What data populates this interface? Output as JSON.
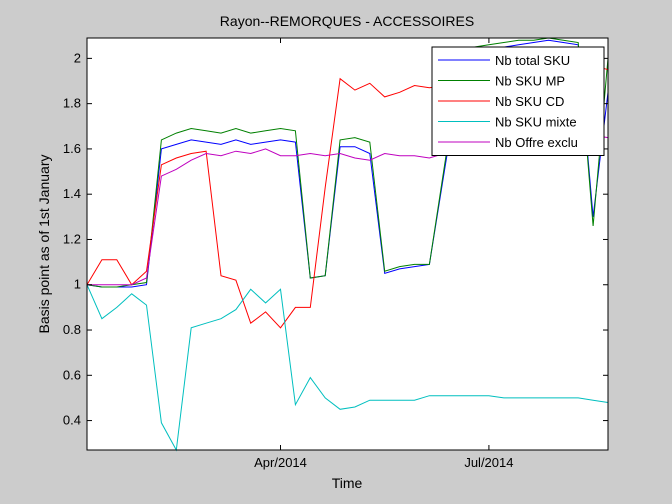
{
  "chart_data": {
    "type": "line",
    "title": "Rayon--REMORQUES - ACCESSOIRES",
    "xlabel": "Time",
    "ylabel": "Basis point as of 1st January",
    "ylim": [
      0.27,
      2.09
    ],
    "yticks": [
      0.4,
      0.6,
      0.8,
      1,
      1.2,
      1.4,
      1.6,
      1.8,
      2
    ],
    "ytick_labels": [
      "0.4",
      "0.6",
      "0.8",
      "1",
      "1.2",
      "1.4",
      "1.6",
      "1.8",
      "2"
    ],
    "xlim": [
      0,
      35
    ],
    "xticks": [
      13,
      27
    ],
    "xtick_labels": [
      "Apr/2014",
      "Jul/2014"
    ],
    "x_unit": "week index (week 0 = 1st January 2014)",
    "grid": false,
    "legend_position": "top-right",
    "x": [
      0,
      1,
      2,
      3,
      4,
      5,
      6,
      7,
      8,
      9,
      10,
      11,
      12,
      13,
      14,
      15,
      16,
      17,
      18,
      19,
      20,
      21,
      22,
      23,
      24,
      25,
      26,
      27,
      28,
      29,
      30,
      31,
      32,
      33,
      34,
      35
    ],
    "series": [
      {
        "name": "Nb total SKU",
        "color": "#0000ff",
        "values": [
          1.0,
          0.99,
          0.99,
          0.99,
          1.0,
          1.6,
          1.62,
          1.64,
          1.63,
          1.62,
          1.64,
          1.62,
          1.63,
          1.64,
          1.63,
          1.03,
          1.04,
          1.61,
          1.61,
          1.58,
          1.05,
          1.07,
          1.08,
          1.09,
          1.5,
          1.9,
          2.0,
          2.03,
          2.05,
          2.06,
          2.07,
          2.08,
          2.07,
          2.06,
          1.3,
          1.85
        ]
      },
      {
        "name": "Nb SKU MP",
        "color": "#008000",
        "values": [
          1.0,
          0.99,
          0.99,
          1.0,
          1.01,
          1.64,
          1.67,
          1.69,
          1.68,
          1.67,
          1.69,
          1.67,
          1.68,
          1.69,
          1.68,
          1.03,
          1.04,
          1.64,
          1.65,
          1.63,
          1.06,
          1.08,
          1.09,
          1.09,
          1.52,
          1.95,
          2.05,
          2.06,
          2.07,
          2.08,
          2.08,
          2.09,
          2.08,
          2.07,
          1.26,
          2.0
        ]
      },
      {
        "name": "Nb SKU CD",
        "color": "#ff0000",
        "values": [
          1.0,
          1.11,
          1.11,
          1.0,
          1.06,
          1.53,
          1.56,
          1.58,
          1.59,
          1.04,
          1.02,
          0.83,
          0.88,
          0.81,
          0.9,
          0.9,
          1.43,
          1.91,
          1.86,
          1.89,
          1.83,
          1.85,
          1.88,
          1.87,
          1.88,
          1.9,
          1.92,
          1.94,
          1.95,
          1.96,
          1.97,
          1.97,
          1.96,
          1.96,
          1.97,
          1.95
        ]
      },
      {
        "name": "Nb SKU mixte",
        "color": "#00bfbf",
        "values": [
          1.0,
          0.85,
          0.9,
          0.96,
          0.91,
          0.39,
          0.27,
          0.81,
          0.83,
          0.85,
          0.89,
          0.98,
          0.92,
          0.98,
          0.47,
          0.59,
          0.5,
          0.45,
          0.46,
          0.49,
          0.49,
          0.49,
          0.49,
          0.51,
          0.51,
          0.51,
          0.51,
          0.51,
          0.5,
          0.5,
          0.5,
          0.5,
          0.5,
          0.5,
          0.49,
          0.48
        ]
      },
      {
        "name": "Nb Offre exclu",
        "color": "#bf00bf",
        "values": [
          1.0,
          1.0,
          1.0,
          1.0,
          1.03,
          1.48,
          1.51,
          1.55,
          1.58,
          1.57,
          1.59,
          1.58,
          1.6,
          1.57,
          1.57,
          1.58,
          1.57,
          1.58,
          1.56,
          1.55,
          1.58,
          1.57,
          1.57,
          1.56,
          1.58,
          1.6,
          1.62,
          1.63,
          1.64,
          1.64,
          1.65,
          1.65,
          1.66,
          1.66,
          1.66,
          1.65
        ]
      }
    ]
  }
}
